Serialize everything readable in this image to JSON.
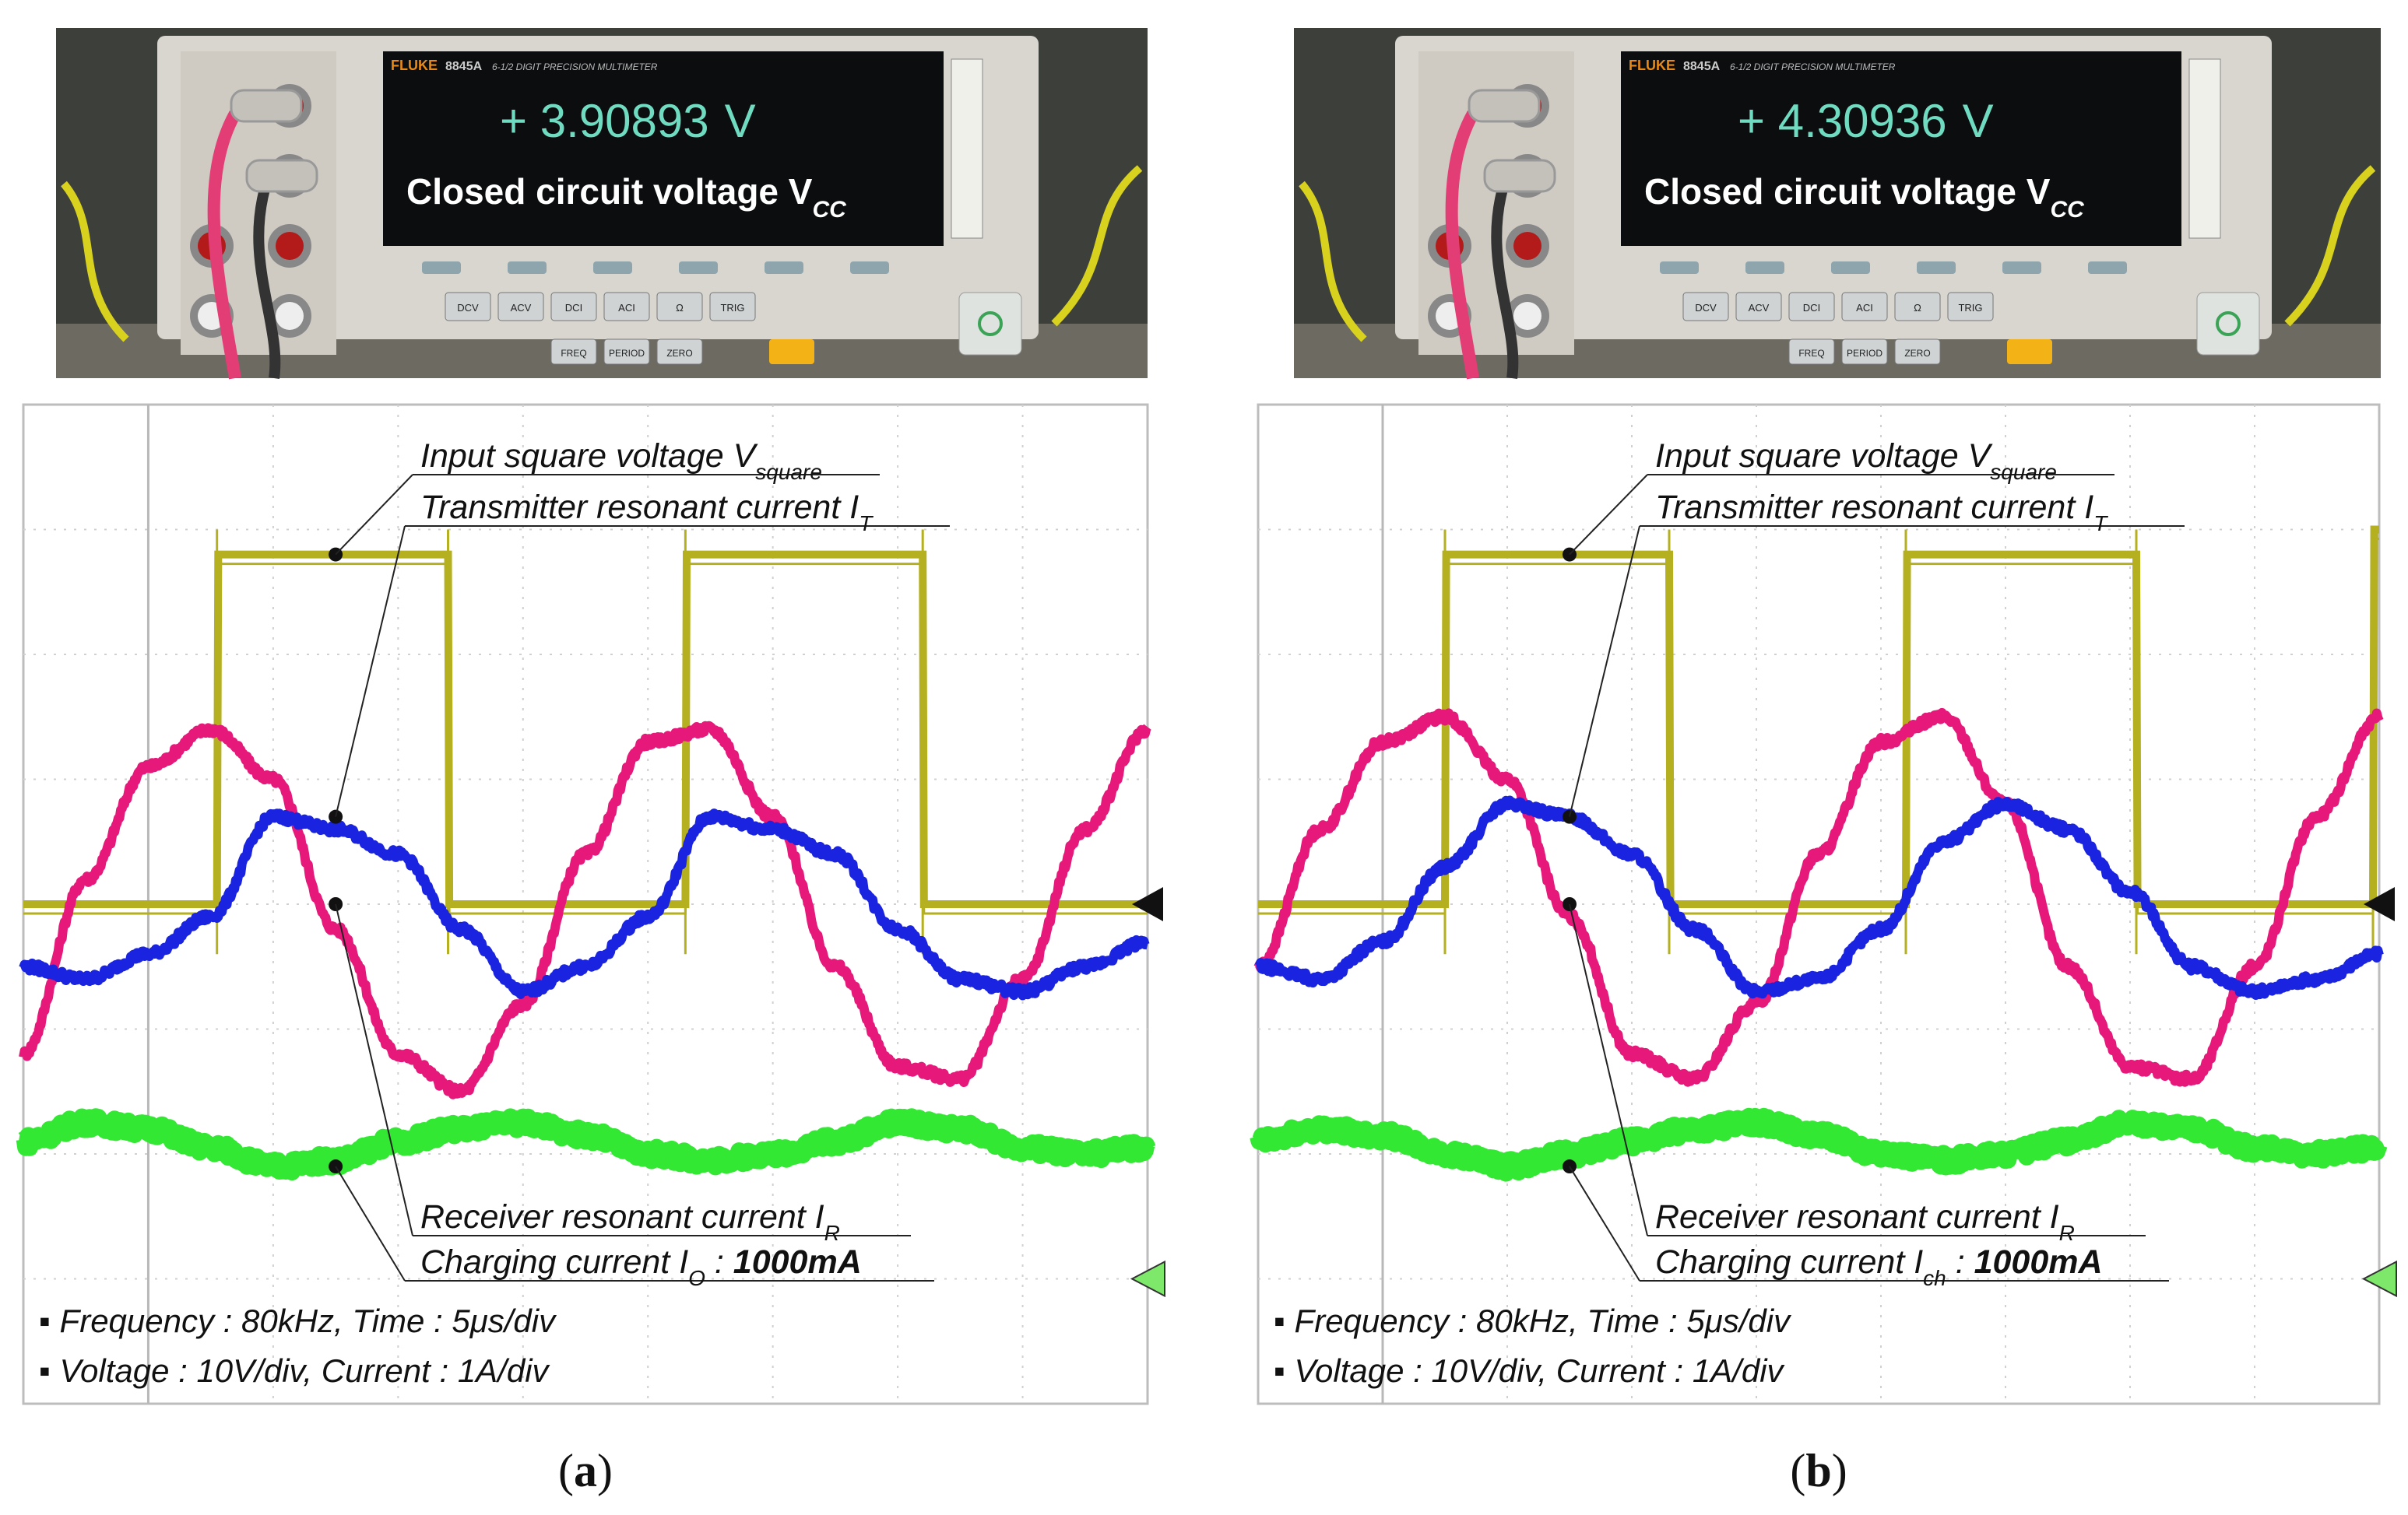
{
  "panels": [
    {
      "id": "a",
      "caption_label": "a",
      "meter": {
        "brand": "FLUKE",
        "model": "8845A",
        "model_desc": "6-1/2 DIGIT PRECISION MULTIMETER",
        "reading_sign": "+",
        "reading": "3.90893",
        "reading_unit": "V",
        "overlay_text": "Closed circuit voltage V",
        "overlay_sub": "CC",
        "buttons_top": [
          "DCV",
          "ACV",
          "DCI",
          "ACI",
          "Ω",
          "TRIG"
        ],
        "buttons_bottom": [
          "FREQ",
          "PERIOD",
          "ZERO"
        ]
      },
      "annotations": {
        "square_voltage": {
          "text": "Input square voltage V",
          "sub": "square"
        },
        "transmitter_current": {
          "text": "Transmitter resonant current I",
          "sub": "T"
        },
        "receiver_current": {
          "text": "Receiver resonant current I",
          "sub": "R"
        },
        "charging_current": {
          "text": "Charging current I",
          "sub": "O",
          "value_sep": " : ",
          "value": "1000mA"
        }
      },
      "notes": [
        "▪ Frequency : 80kHz, Time : 5μs/div",
        "▪ Voltage : 10V/div, Current : 1A/div"
      ]
    },
    {
      "id": "b",
      "caption_label": "b",
      "meter": {
        "brand": "FLUKE",
        "model": "8845A",
        "model_desc": "6-1/2 DIGIT PRECISION MULTIMETER",
        "reading_sign": "+",
        "reading": "4.30936",
        "reading_unit": "V",
        "overlay_text": "Closed circuit voltage V",
        "overlay_sub": "CC",
        "buttons_top": [
          "DCV",
          "ACV",
          "DCI",
          "ACI",
          "Ω",
          "TRIG"
        ],
        "buttons_bottom": [
          "FREQ",
          "PERIOD",
          "ZERO"
        ]
      },
      "annotations": {
        "square_voltage": {
          "text": "Input square voltage V",
          "sub": "square"
        },
        "transmitter_current": {
          "text": "Transmitter resonant current I",
          "sub": "T"
        },
        "receiver_current": {
          "text": "Receiver resonant current I",
          "sub": "R"
        },
        "charging_current": {
          "text": "Charging current I",
          "sub": "ch",
          "value_sep": " : ",
          "value": "1000mA"
        }
      },
      "notes": [
        "▪ Frequency : 80kHz, Time : 5μs/div",
        "▪ Voltage : 10V/div, Current : 1A/div"
      ]
    }
  ],
  "chart_data": [
    {
      "type": "line",
      "panel": "a",
      "grid": true,
      "x_divisions": 9,
      "y_divisions": 8,
      "xlim_div": [
        0,
        9
      ],
      "ylim_div": [
        -4,
        4
      ],
      "series": [
        {
          "color": "#b5b020",
          "x_div": [
            0,
            1.55,
            1.56,
            3.4,
            3.41,
            5.3,
            5.31,
            7.2,
            7.21,
            9
          ],
          "y_div": [
            0,
            0,
            2.8,
            2.8,
            0,
            0,
            2.8,
            2.8,
            0,
            0
          ]
        },
        {
          "color": "#e6197a",
          "x_div": [
            0,
            0.5,
            1,
            1.5,
            2,
            2.5,
            3,
            3.5,
            4,
            4.5,
            5,
            5.5,
            6,
            6.5,
            7,
            7.5,
            8,
            8.5,
            9
          ],
          "y_div": [
            -1.2,
            0.2,
            1.1,
            1.4,
            1.0,
            -0.2,
            -1.2,
            -1.5,
            -0.8,
            0.4,
            1.3,
            1.4,
            0.7,
            -0.5,
            -1.3,
            -1.4,
            -0.6,
            0.6,
            1.4
          ]
        },
        {
          "color": "#1a24e0",
          "x_div": [
            0,
            0.5,
            1,
            1.5,
            2,
            2.5,
            3,
            3.5,
            4,
            4.5,
            5,
            5.5,
            6,
            6.5,
            7,
            7.5,
            8,
            8.5,
            9
          ],
          "y_div": [
            -0.5,
            -0.6,
            -0.4,
            -0.1,
            0.7,
            0.6,
            0.4,
            -0.2,
            -0.7,
            -0.5,
            -0.1,
            0.7,
            0.6,
            0.4,
            -0.2,
            -0.6,
            -0.7,
            -0.5,
            -0.3
          ]
        },
        {
          "color": "#33e833",
          "x_div": [
            0,
            0.5,
            1,
            1.5,
            2,
            2.5,
            3,
            3.5,
            4,
            4.5,
            5,
            5.5,
            6,
            6.5,
            7,
            7.5,
            8,
            8.5,
            9
          ],
          "y_div": [
            -1.9,
            -1.75,
            -1.8,
            -1.95,
            -2.1,
            -2.05,
            -1.9,
            -1.8,
            -1.75,
            -1.85,
            -2.0,
            -2.05,
            -2.0,
            -1.9,
            -1.75,
            -1.8,
            -1.95,
            -2.0,
            -1.95
          ]
        }
      ]
    },
    {
      "type": "line",
      "panel": "b",
      "grid": true,
      "x_divisions": 9,
      "y_divisions": 8,
      "xlim_div": [
        0,
        9
      ],
      "ylim_div": [
        -4,
        4
      ],
      "series": [
        {
          "color": "#b5b020",
          "x_div": [
            0,
            1.5,
            1.51,
            3.3,
            3.31,
            5.2,
            5.21,
            7.05,
            7.06,
            8.95,
            8.96,
            9
          ],
          "y_div": [
            0,
            0,
            2.8,
            2.8,
            0,
            0,
            2.8,
            2.8,
            0,
            0,
            3.0,
            3.0
          ]
        },
        {
          "color": "#e6197a",
          "x_div": [
            0,
            0.5,
            1,
            1.5,
            2,
            2.5,
            3,
            3.5,
            4,
            4.5,
            5,
            5.5,
            6,
            6.5,
            7,
            7.5,
            8,
            8.5,
            9
          ],
          "y_div": [
            -0.5,
            0.6,
            1.3,
            1.5,
            1.0,
            -0.1,
            -1.2,
            -1.4,
            -0.8,
            0.4,
            1.3,
            1.5,
            0.8,
            -0.5,
            -1.3,
            -1.4,
            -0.5,
            0.7,
            1.5
          ]
        },
        {
          "color": "#1a24e0",
          "x_div": [
            0,
            0.5,
            1,
            1.5,
            2,
            2.5,
            3,
            3.5,
            4,
            4.5,
            5,
            5.5,
            6,
            6.5,
            7,
            7.5,
            8,
            8.5,
            9
          ],
          "y_div": [
            -0.5,
            -0.6,
            -0.3,
            0.3,
            0.8,
            0.7,
            0.4,
            -0.2,
            -0.7,
            -0.6,
            -0.2,
            0.5,
            0.8,
            0.6,
            0.1,
            -0.5,
            -0.7,
            -0.6,
            -0.4
          ]
        },
        {
          "color": "#33e833",
          "x_div": [
            0,
            0.5,
            1,
            1.5,
            2,
            2.5,
            3,
            3.5,
            4,
            4.5,
            5,
            5.5,
            6,
            6.5,
            7,
            7.5,
            8,
            8.5,
            9
          ],
          "y_div": [
            -1.9,
            -1.8,
            -1.85,
            -2.0,
            -2.1,
            -2.0,
            -1.9,
            -1.8,
            -1.75,
            -1.85,
            -2.0,
            -2.05,
            -2.0,
            -1.9,
            -1.75,
            -1.8,
            -1.95,
            -2.0,
            -1.95
          ]
        }
      ]
    }
  ]
}
